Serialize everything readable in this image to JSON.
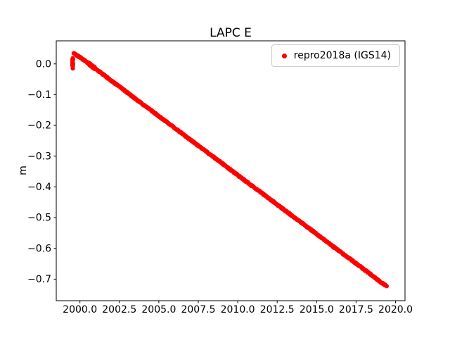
{
  "chart_data": {
    "type": "scatter",
    "title": "LAPC E",
    "xlabel": "",
    "ylabel": "m",
    "xlim": [
      1998.5,
      2020.6
    ],
    "ylim": [
      -0.77,
      0.075
    ],
    "grid": false,
    "legend_position": "upper right",
    "marker_color": "#ff0000",
    "axis_color": "#000000",
    "xticks": [
      2000.0,
      2002.5,
      2005.0,
      2007.5,
      2010.0,
      2012.5,
      2015.0,
      2017.5,
      2020.0
    ],
    "xtick_labels": [
      "2000.0",
      "2002.5",
      "2005.0",
      "2007.5",
      "2010.0",
      "2012.5",
      "2015.0",
      "2017.5",
      "2020.0"
    ],
    "yticks": [
      0.0,
      -0.1,
      -0.2,
      -0.3,
      -0.4,
      -0.5,
      -0.6,
      -0.7
    ],
    "ytick_labels": [
      "0.0",
      "−0.1",
      "−0.2",
      "−0.3",
      "−0.4",
      "−0.5",
      "−0.6",
      "−0.7"
    ],
    "points_per_year": 52,
    "series": [
      {
        "name": "repro2018a (IGS14)",
        "x": [
          1999.6,
          2000.0,
          2001.0,
          2002.0,
          2003.0,
          2004.0,
          2005.0,
          2006.0,
          2007.0,
          2008.0,
          2009.0,
          2010.0,
          2011.0,
          2012.0,
          2013.0,
          2014.0,
          2015.0,
          2016.0,
          2017.0,
          2018.0,
          2019.0,
          2019.45
        ],
        "y": [
          0.035,
          0.022,
          -0.016,
          -0.055,
          -0.093,
          -0.132,
          -0.17,
          -0.208,
          -0.247,
          -0.285,
          -0.323,
          -0.362,
          -0.4,
          -0.438,
          -0.477,
          -0.515,
          -0.553,
          -0.592,
          -0.63,
          -0.668,
          -0.707,
          -0.724
        ]
      }
    ],
    "initial_scatter": {
      "x": 1999.54,
      "y_min": -0.015,
      "y_max": 0.02,
      "count": 25
    },
    "dense_segment": {
      "x_min": 2000.55,
      "x_max": 2000.95,
      "spread": 0.008
    }
  }
}
